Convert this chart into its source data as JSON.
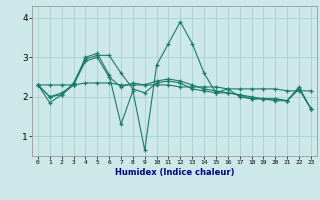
{
  "xlabel": "Humidex (Indice chaleur)",
  "bg_color": "#cce8e8",
  "grid_color": "#aacece",
  "line_color": "#1a7a6a",
  "xlabel_color": "#00008b",
  "x_ticks": [
    0,
    1,
    2,
    3,
    4,
    5,
    6,
    7,
    8,
    9,
    10,
    11,
    12,
    13,
    14,
    15,
    16,
    17,
    18,
    19,
    20,
    21,
    22,
    23
  ],
  "y_ticks": [
    1,
    2,
    3,
    4
  ],
  "ylim": [
    0.5,
    4.3
  ],
  "xlim": [
    -0.5,
    23.5
  ],
  "series": [
    [
      2.3,
      1.85,
      2.05,
      2.35,
      2.95,
      3.05,
      3.05,
      2.6,
      2.2,
      2.1,
      2.35,
      2.4,
      2.35,
      2.2,
      2.15,
      2.1,
      2.1,
      2.05,
      1.95,
      1.95,
      1.95,
      1.9,
      2.2,
      1.7
    ],
    [
      2.3,
      2.3,
      2.3,
      2.3,
      2.35,
      2.35,
      2.35,
      2.3,
      2.3,
      2.3,
      2.3,
      2.3,
      2.25,
      2.25,
      2.25,
      2.25,
      2.2,
      2.2,
      2.2,
      2.2,
      2.2,
      2.15,
      2.15,
      2.15
    ],
    [
      2.3,
      2.0,
      2.1,
      2.3,
      3.0,
      3.1,
      2.55,
      1.3,
      2.15,
      0.65,
      2.8,
      3.35,
      3.9,
      3.35,
      2.6,
      2.1,
      2.2,
      2.0,
      1.95,
      1.95,
      1.9,
      1.9,
      2.25,
      1.7
    ],
    [
      2.3,
      2.0,
      2.05,
      2.3,
      2.9,
      3.0,
      2.5,
      2.25,
      2.35,
      2.3,
      2.4,
      2.45,
      2.4,
      2.3,
      2.2,
      2.15,
      2.1,
      2.05,
      2.0,
      1.95,
      1.95,
      1.9,
      2.2,
      1.7
    ]
  ]
}
